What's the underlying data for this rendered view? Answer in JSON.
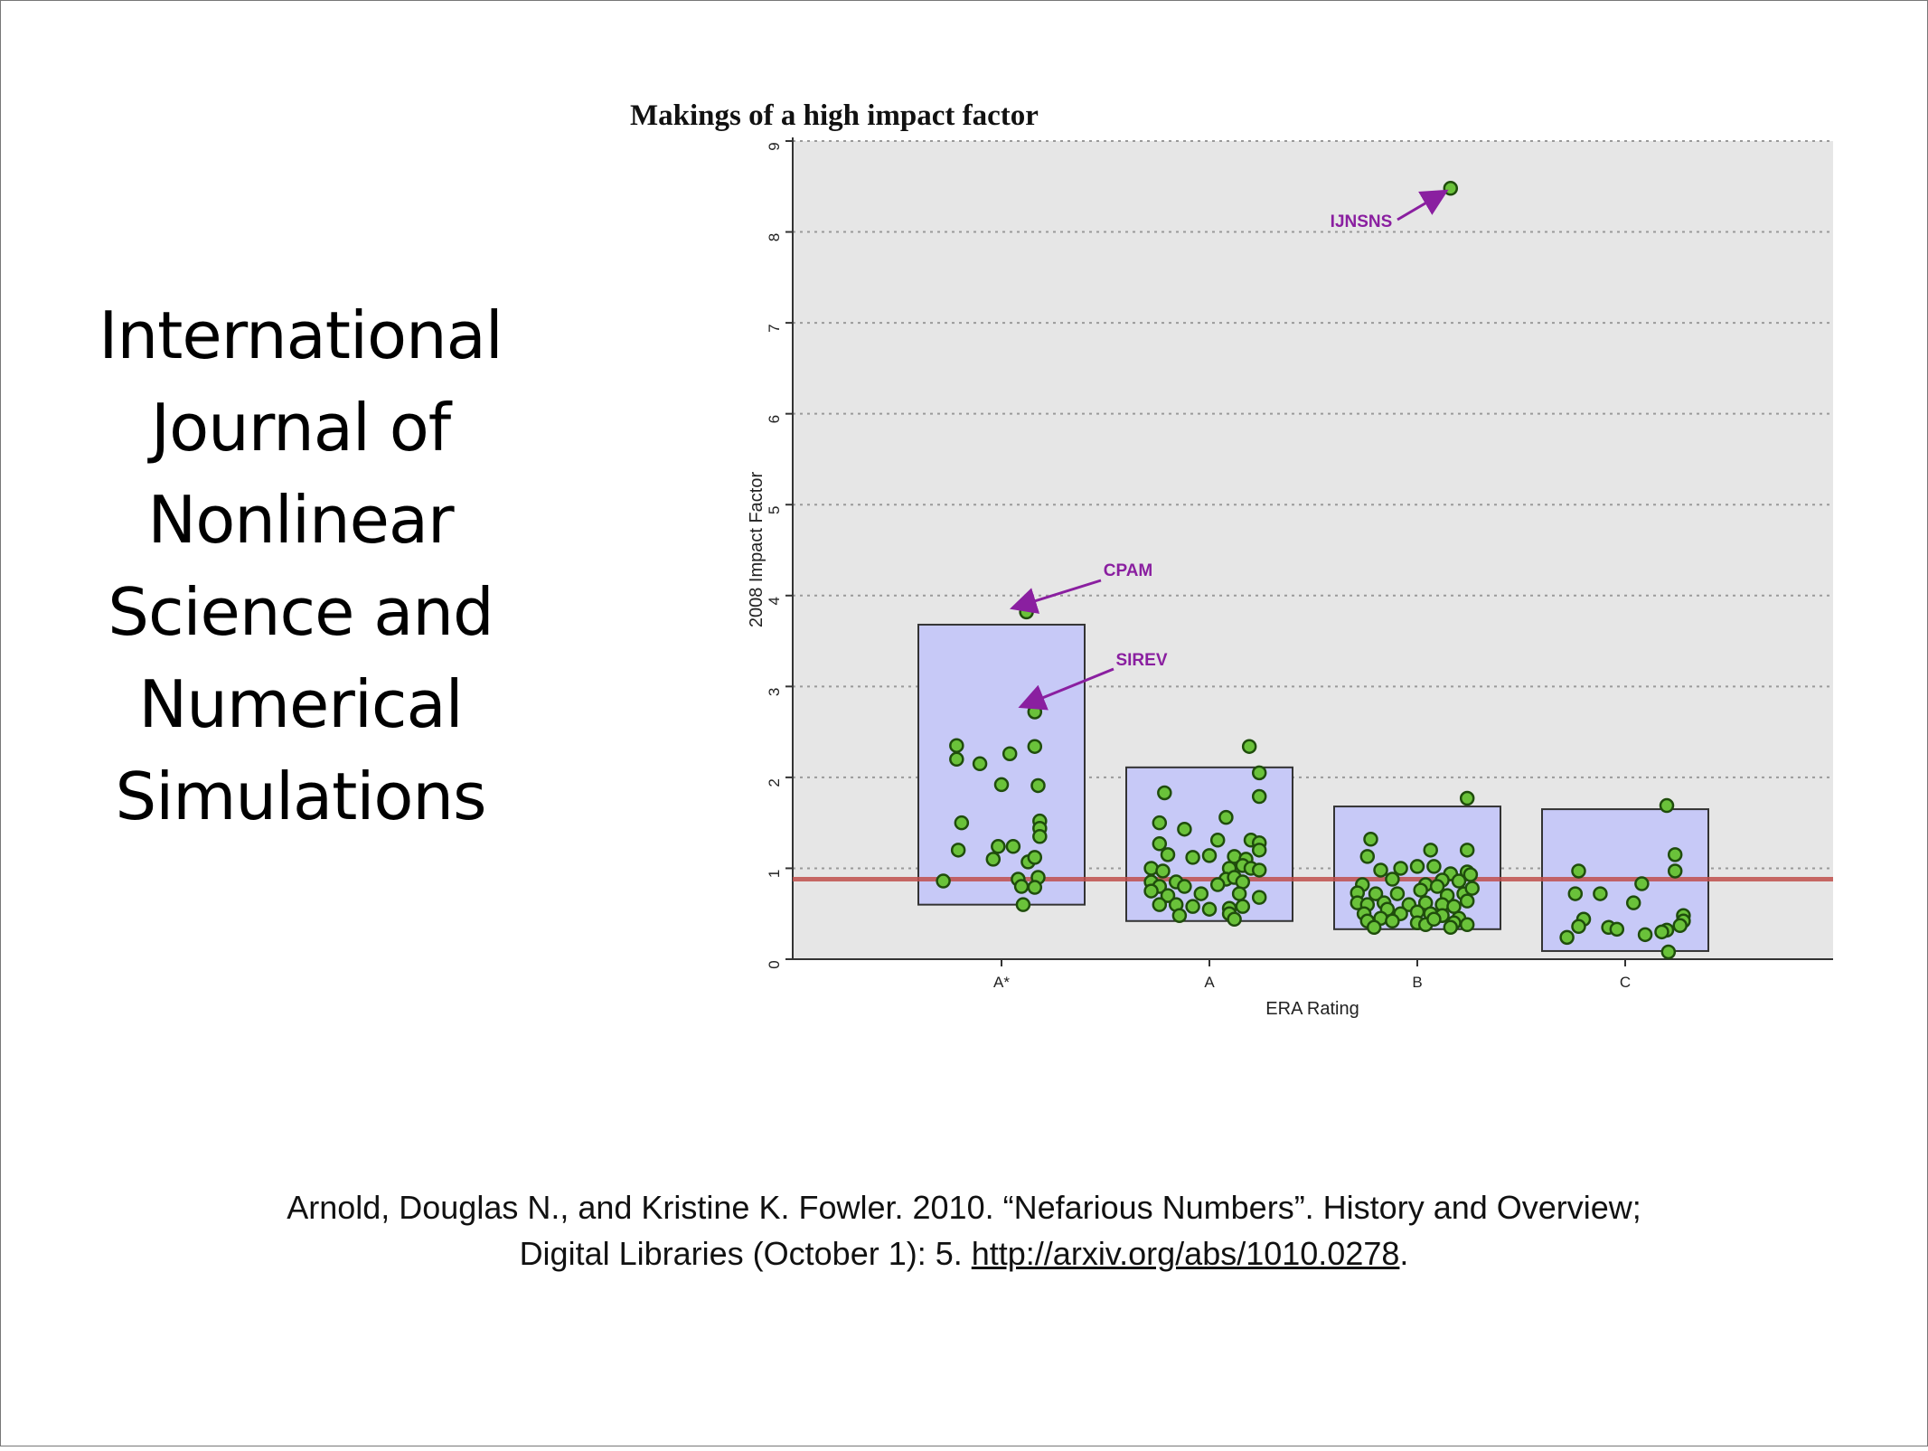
{
  "slide": {
    "title_lines": [
      "International",
      "Journal of",
      "Nonlinear",
      "Science and",
      "Numerical",
      "Simulations"
    ]
  },
  "citation": {
    "line1": "Arnold, Douglas N., and Kristine K. Fowler. 2010. “Nefarious Numbers”. History and Overview;",
    "line2_prefix": "Digital Libraries (October 1): 5. ",
    "link": "http://arxiv.org/abs/1010.0278",
    "line2_suffix": "."
  },
  "chart_data": {
    "type": "scatter",
    "title": "Makings of a high impact factor",
    "xlabel": "ERA Rating",
    "ylabel": "2008 Impact Factor",
    "categories": [
      "A*",
      "A",
      "B",
      "C"
    ],
    "ylim": [
      0,
      9
    ],
    "yticks": [
      "0",
      "1",
      "2",
      "3",
      "4",
      "5",
      "6",
      "7",
      "8",
      "9"
    ],
    "grid": true,
    "reference_line": {
      "y": 0.88,
      "color": "#c0504d"
    },
    "colors": {
      "point_fill": "#6ac23a",
      "point_stroke": "#1f4d0c",
      "box_fill": "#c7c9f7",
      "box_stroke": "#333333",
      "plot_bg": "#e6e6e6",
      "annotation": "#8a1fa0"
    },
    "boxes": [
      {
        "category": "A*",
        "low": 0.6,
        "high": 3.68
      },
      {
        "category": "A",
        "low": 0.42,
        "high": 2.11
      },
      {
        "category": "B",
        "low": 0.33,
        "high": 1.68
      },
      {
        "category": "C",
        "low": 0.09,
        "high": 1.65
      }
    ],
    "series": [
      {
        "category": "A*",
        "points": [
          [
            0.15,
            3.82
          ],
          [
            0.2,
            2.72
          ],
          [
            -0.27,
            2.35
          ],
          [
            -0.27,
            2.2
          ],
          [
            -0.13,
            2.15
          ],
          [
            0.05,
            2.26
          ],
          [
            0.2,
            2.34
          ],
          [
            0.0,
            1.92
          ],
          [
            0.22,
            1.91
          ],
          [
            -0.24,
            1.5
          ],
          [
            0.23,
            1.52
          ],
          [
            0.23,
            1.44
          ],
          [
            0.23,
            1.35
          ],
          [
            0.07,
            1.24
          ],
          [
            0.16,
            1.07
          ],
          [
            -0.02,
            1.24
          ],
          [
            -0.26,
            1.2
          ],
          [
            -0.05,
            1.1
          ],
          [
            0.2,
            1.12
          ],
          [
            0.22,
            0.9
          ],
          [
            -0.35,
            0.86
          ],
          [
            0.1,
            0.88
          ],
          [
            0.12,
            0.8
          ],
          [
            0.2,
            0.79
          ],
          [
            0.13,
            0.6
          ]
        ]
      },
      {
        "category": "A",
        "points": [
          [
            0.24,
            2.34
          ],
          [
            0.3,
            2.05
          ],
          [
            0.3,
            1.79
          ],
          [
            -0.27,
            1.83
          ],
          [
            -0.3,
            1.5
          ],
          [
            -0.15,
            1.43
          ],
          [
            0.1,
            1.56
          ],
          [
            -0.3,
            1.27
          ],
          [
            0.05,
            1.31
          ],
          [
            0.25,
            1.31
          ],
          [
            0.3,
            1.28
          ],
          [
            0.3,
            1.2
          ],
          [
            0.15,
            1.13
          ],
          [
            0.22,
            1.1
          ],
          [
            -0.25,
            1.15
          ],
          [
            0.0,
            1.14
          ],
          [
            -0.1,
            1.12
          ],
          [
            -0.35,
            1.0
          ],
          [
            -0.28,
            0.97
          ],
          [
            0.12,
            1.0
          ],
          [
            0.2,
            1.03
          ],
          [
            0.25,
            1.0
          ],
          [
            0.3,
            0.98
          ],
          [
            -0.35,
            0.85
          ],
          [
            -0.3,
            0.8
          ],
          [
            -0.2,
            0.85
          ],
          [
            -0.15,
            0.8
          ],
          [
            0.1,
            0.88
          ],
          [
            0.15,
            0.9
          ],
          [
            0.2,
            0.85
          ],
          [
            0.05,
            0.82
          ],
          [
            -0.35,
            0.75
          ],
          [
            -0.25,
            0.7
          ],
          [
            -0.05,
            0.72
          ],
          [
            0.18,
            0.72
          ],
          [
            0.3,
            0.68
          ],
          [
            -0.3,
            0.6
          ],
          [
            -0.2,
            0.6
          ],
          [
            -0.1,
            0.58
          ],
          [
            0.0,
            0.55
          ],
          [
            0.12,
            0.56
          ],
          [
            0.2,
            0.58
          ],
          [
            -0.18,
            0.48
          ],
          [
            0.12,
            0.5
          ],
          [
            0.15,
            0.44
          ]
        ]
      },
      {
        "category": "B",
        "points": [
          [
            0.3,
            1.77
          ],
          [
            -0.28,
            1.32
          ],
          [
            -0.3,
            1.13
          ],
          [
            0.08,
            1.2
          ],
          [
            0.3,
            1.2
          ],
          [
            -0.1,
            1.0
          ],
          [
            -0.22,
            0.98
          ],
          [
            0.0,
            1.02
          ],
          [
            0.2,
            0.94
          ],
          [
            0.3,
            0.96
          ],
          [
            0.32,
            0.93
          ],
          [
            -0.33,
            0.82
          ],
          [
            -0.15,
            0.88
          ],
          [
            0.05,
            0.82
          ],
          [
            0.15,
            0.87
          ],
          [
            0.25,
            0.86
          ],
          [
            -0.36,
            0.73
          ],
          [
            -0.25,
            0.72
          ],
          [
            -0.12,
            0.72
          ],
          [
            0.02,
            0.76
          ],
          [
            0.12,
            0.8
          ],
          [
            0.18,
            0.7
          ],
          [
            0.28,
            0.72
          ],
          [
            0.33,
            0.78
          ],
          [
            -0.36,
            0.62
          ],
          [
            -0.3,
            0.6
          ],
          [
            -0.2,
            0.62
          ],
          [
            -0.05,
            0.6
          ],
          [
            0.05,
            0.62
          ],
          [
            0.15,
            0.6
          ],
          [
            0.22,
            0.58
          ],
          [
            0.3,
            0.64
          ],
          [
            -0.32,
            0.5
          ],
          [
            -0.18,
            0.55
          ],
          [
            -0.1,
            0.5
          ],
          [
            0.0,
            0.52
          ],
          [
            0.08,
            0.5
          ],
          [
            0.15,
            0.48
          ],
          [
            0.25,
            0.45
          ],
          [
            -0.3,
            0.42
          ],
          [
            -0.22,
            0.45
          ],
          [
            0.0,
            0.4
          ],
          [
            0.05,
            0.38
          ],
          [
            0.1,
            0.44
          ],
          [
            0.22,
            0.4
          ],
          [
            0.3,
            0.38
          ],
          [
            -0.26,
            0.35
          ],
          [
            0.2,
            0.35
          ],
          [
            -0.15,
            0.42
          ],
          [
            0.1,
            1.02
          ]
        ]
      },
      {
        "category": "C",
        "points": [
          [
            0.25,
            1.69
          ],
          [
            0.3,
            1.15
          ],
          [
            0.3,
            0.97
          ],
          [
            -0.28,
            0.97
          ],
          [
            0.1,
            0.83
          ],
          [
            -0.15,
            0.72
          ],
          [
            -0.3,
            0.72
          ],
          [
            0.05,
            0.62
          ],
          [
            0.35,
            0.48
          ],
          [
            0.35,
            0.42
          ],
          [
            0.33,
            0.37
          ],
          [
            0.25,
            0.32
          ],
          [
            0.22,
            0.3
          ],
          [
            -0.25,
            0.44
          ],
          [
            -0.28,
            0.36
          ],
          [
            -0.1,
            0.35
          ],
          [
            -0.05,
            0.33
          ],
          [
            0.12,
            0.27
          ],
          [
            -0.35,
            0.24
          ],
          [
            0.26,
            0.08
          ]
        ]
      },
      {
        "category": "B",
        "points": [
          [
            0.2,
            8.48
          ]
        ]
      }
    ],
    "annotations": [
      {
        "label": "IJNSNS",
        "category": "B",
        "x": 0.2,
        "y": 8.48
      },
      {
        "label": "CPAM",
        "category": "A*",
        "x": 0.15,
        "y": 3.82
      },
      {
        "label": "SIREV",
        "category": "A*",
        "x": 0.2,
        "y": 2.72
      }
    ]
  }
}
